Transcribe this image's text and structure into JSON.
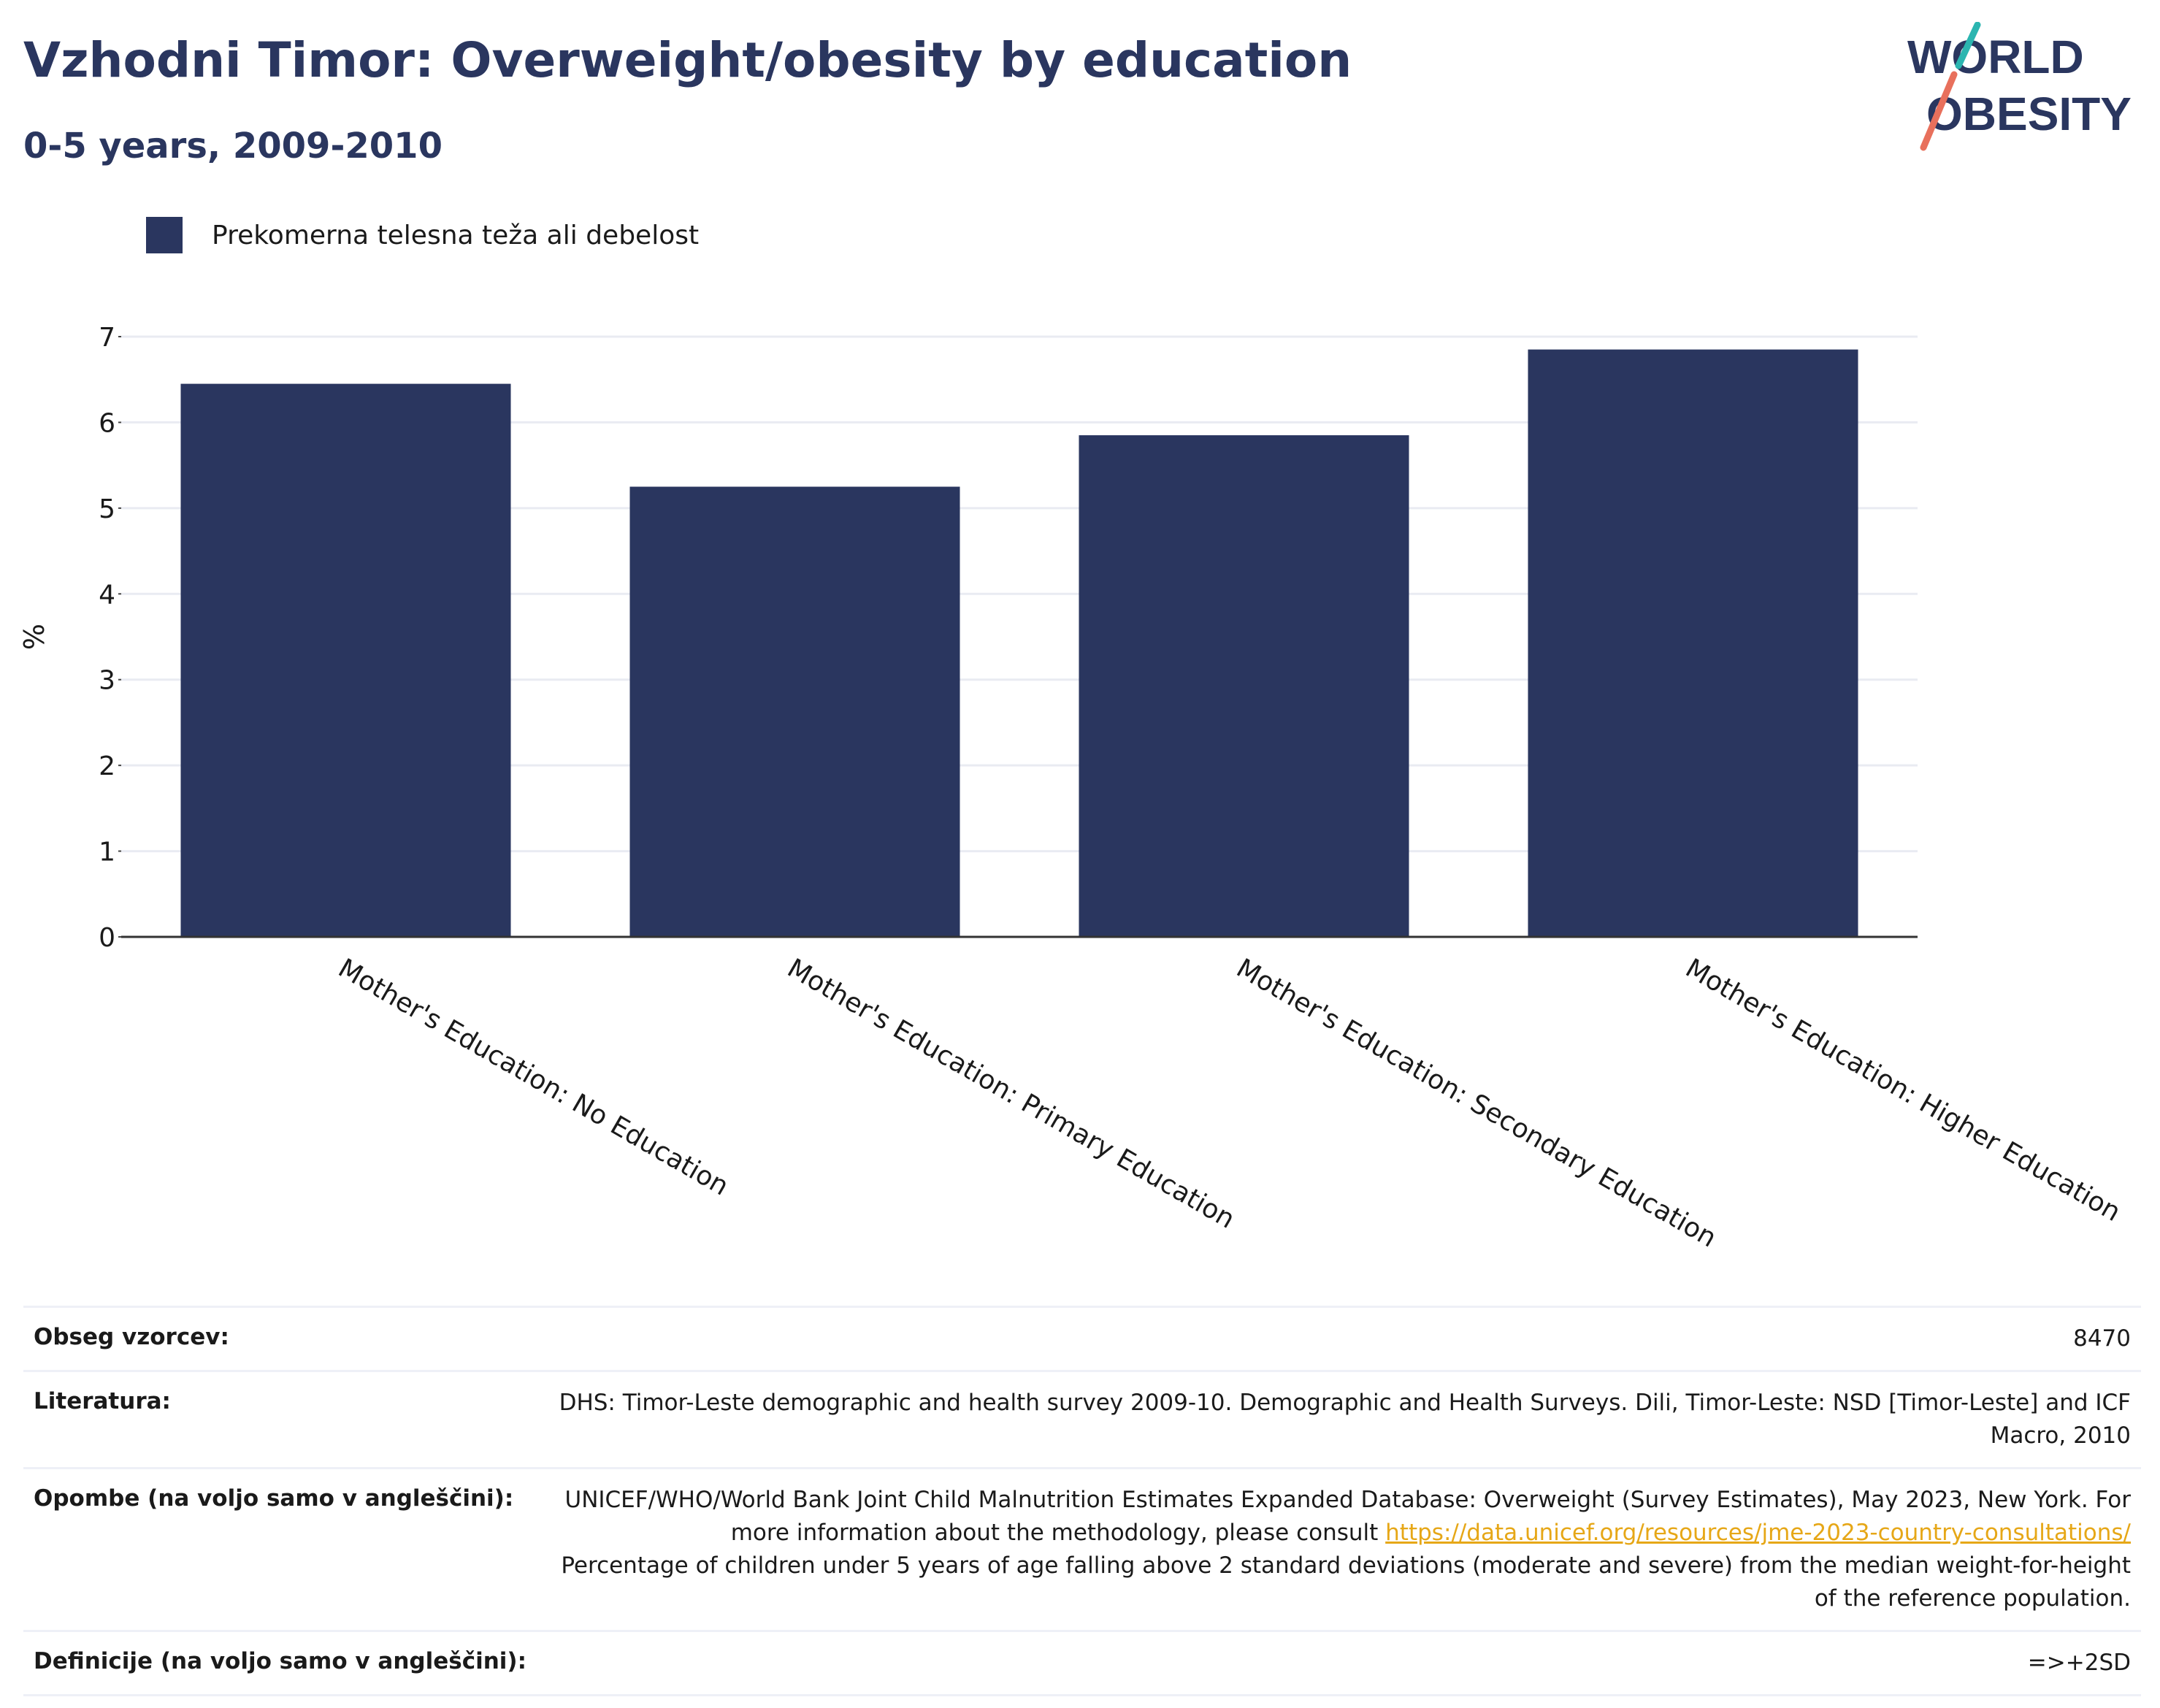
{
  "header": {
    "title": "Vzhodni Timor: Overweight/obesity by education",
    "subtitle": "0-5 years, 2009-2010"
  },
  "logo": {
    "line1": "WORLD",
    "line2": "OBESITY",
    "colors": {
      "text": "#2a365f",
      "slash_top": "#2bb5b0",
      "slash_bottom": "#e8705c"
    }
  },
  "legend": {
    "label": "Prekomerna telesna teža ali debelost",
    "color": "#2a365f"
  },
  "chart_data": {
    "type": "bar",
    "categories": [
      "Mother's Education: No Education",
      "Mother's Education: Primary Education",
      "Mother's Education: Secondary Education",
      "Mother's Education: Higher Education"
    ],
    "series": [
      {
        "name": "Prekomerna telesna teža ali debelost",
        "values": [
          6.45,
          5.25,
          5.85,
          6.85
        ],
        "color": "#2a365f"
      }
    ],
    "ylabel": "%",
    "xlabel": "",
    "ylim": [
      0,
      7
    ],
    "yticks": [
      0,
      1,
      2,
      3,
      4,
      5,
      6,
      7
    ],
    "grid": true,
    "legend_position": "top-left"
  },
  "info": {
    "sample_size_label": "Obseg vzorcev:",
    "sample_size_value": "8470",
    "literature_label": "Literatura:",
    "literature_value": "DHS: Timor-Leste demographic and health survey 2009-10. Demographic and Health Surveys. Dili, Timor-Leste: NSD [Timor-Leste] and ICF Macro, 2010",
    "notes_label": "Opombe (na voljo samo v angleščini):",
    "notes_text_1": "UNICEF/WHO/World Bank Joint Child Malnutrition Estimates Expanded Database: Overweight (Survey Estimates), May 2023, New York. For more information about the methodology, please consult",
    "notes_link": "https://data.unicef.org/resources/jme-2023-country-consultations/",
    "notes_text_2": "Percentage of children under 5 years of age falling above 2 standard deviations (moderate and severe) from the median weight-for-height of the reference population.",
    "definitions_label": "Definicije (na voljo samo v angleščini):",
    "definitions_value": "=>+2SD"
  }
}
